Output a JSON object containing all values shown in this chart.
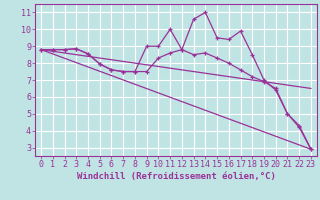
{
  "background_color": "#c0e4e4",
  "grid_color": "#ffffff",
  "line_color": "#993399",
  "xlabel": "Windchill (Refroidissement éolien,°C)",
  "xlim": [
    -0.5,
    23.5
  ],
  "ylim": [
    2.5,
    11.5
  ],
  "xticks": [
    0,
    1,
    2,
    3,
    4,
    5,
    6,
    7,
    8,
    9,
    10,
    11,
    12,
    13,
    14,
    15,
    16,
    17,
    18,
    19,
    20,
    21,
    22,
    23
  ],
  "yticks": [
    3,
    4,
    5,
    6,
    7,
    8,
    9,
    10,
    11
  ],
  "series": {
    "line1_x": [
      0,
      1,
      2,
      3,
      4,
      5,
      6,
      7,
      8,
      9,
      10,
      11,
      12,
      13,
      14,
      15,
      16,
      17,
      18,
      19,
      20,
      21,
      22,
      23
    ],
    "line1_y": [
      8.8,
      8.8,
      8.8,
      8.85,
      8.55,
      7.95,
      7.6,
      7.5,
      7.5,
      7.5,
      8.3,
      8.6,
      8.8,
      8.5,
      8.6,
      8.3,
      8.0,
      7.6,
      7.2,
      6.9,
      6.5,
      5.0,
      4.3,
      2.9
    ],
    "line2_x": [
      0,
      1,
      2,
      3,
      4,
      5,
      6,
      7,
      8,
      9,
      10,
      11,
      12,
      13,
      14,
      15,
      16,
      17,
      18,
      19,
      20,
      21,
      22,
      23
    ],
    "line2_y": [
      8.8,
      8.8,
      8.8,
      8.85,
      8.55,
      7.95,
      7.6,
      7.5,
      7.5,
      9.0,
      9.0,
      10.0,
      8.8,
      10.6,
      11.0,
      9.5,
      9.4,
      9.9,
      8.5,
      7.0,
      6.4,
      5.0,
      4.2,
      2.9
    ],
    "line3_x": [
      0,
      23
    ],
    "line3_y": [
      8.8,
      2.9
    ],
    "line4_x": [
      0,
      23
    ],
    "line4_y": [
      8.8,
      6.5
    ]
  },
  "font_size_label": 6.5,
  "font_size_tick": 6,
  "tick_font": "monospace",
  "label_font": "monospace"
}
